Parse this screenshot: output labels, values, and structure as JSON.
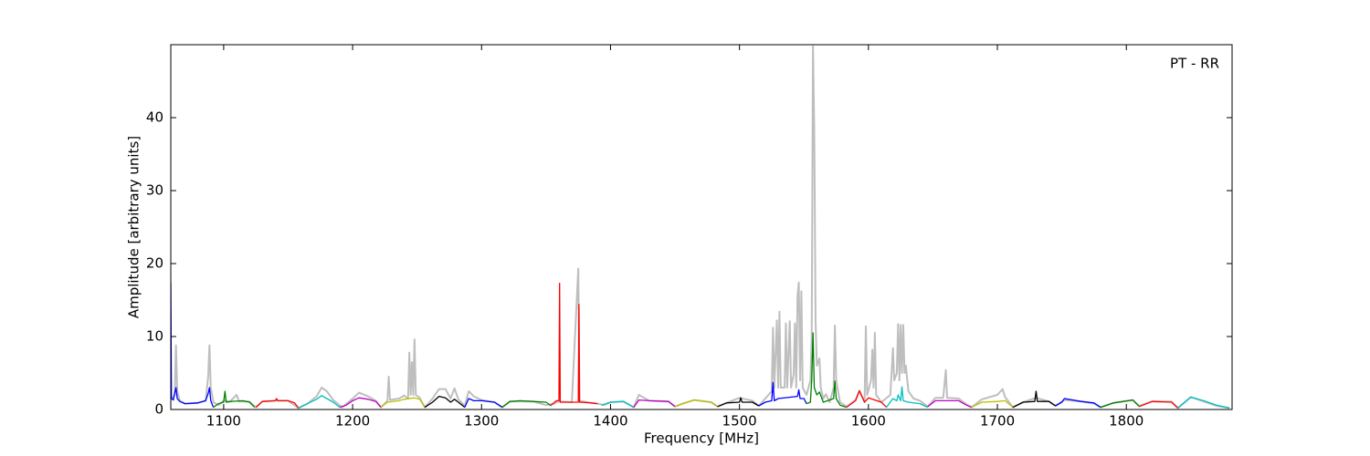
{
  "chart_data": {
    "type": "line",
    "annotation": "PT - RR",
    "x_label": "Frequency [MHz]",
    "y_label": "Amplitude [arbitrary units]",
    "xlim": [
      1059,
      1882
    ],
    "ylim": [
      0,
      50
    ],
    "xticks": [
      1100,
      1200,
      1300,
      1400,
      1500,
      1600,
      1700,
      1800
    ],
    "yticks": [
      0,
      10,
      20,
      30,
      40
    ],
    "series": [
      {
        "color": "#bebebe",
        "x": [
          1060,
          1062,
          1063,
          1064,
          1066,
          1070,
          1080,
          1086,
          1088,
          1089,
          1090,
          1092,
          1096,
          1100,
          1105,
          1110,
          1112,
          1120,
          1125,
          1130,
          1140,
          1150,
          1158,
          1165,
          1172,
          1176,
          1180,
          1185,
          1192,
          1200,
          1205,
          1212,
          1218,
          1222,
          1227,
          1228,
          1229,
          1236,
          1240,
          1243,
          1244,
          1245,
          1246,
          1247,
          1248,
          1249,
          1252,
          1256,
          1262,
          1267,
          1272,
          1276,
          1279,
          1282,
          1287,
          1290,
          1294,
          1300,
          1310,
          1316,
          1322,
          1340,
          1350,
          1356,
          1360,
          1370,
          1375,
          1376,
          1385,
          1390,
          1395,
          1400,
          1410,
          1418,
          1422,
          1430,
          1445,
          1450,
          1456,
          1465,
          1478,
          1483,
          1490,
          1500,
          1510,
          1515,
          1520,
          1525,
          1526,
          1527,
          1529,
          1530,
          1531,
          1532,
          1535,
          1536,
          1537,
          1539,
          1540,
          1542,
          1543,
          1544,
          1545,
          1546,
          1547,
          1548,
          1549,
          1552,
          1555,
          1556,
          1557,
          1558,
          1559,
          1560,
          1562,
          1563,
          1565,
          1567,
          1570,
          1573,
          1574,
          1575,
          1578,
          1583,
          1590,
          1593,
          1597,
          1598,
          1599,
          1602,
          1603,
          1604,
          1605,
          1606,
          1610,
          1617,
          1619,
          1620,
          1622,
          1623,
          1624,
          1625,
          1626,
          1627,
          1628,
          1629,
          1631,
          1635,
          1640,
          1646,
          1652,
          1658,
          1660,
          1661,
          1670,
          1676,
          1680,
          1688,
          1700,
          1704,
          1706,
          1712,
          1720,
          1730,
          1740,
          1745,
          1752,
          1765,
          1775,
          1780,
          1790,
          1805,
          1810,
          1820,
          1835,
          1840,
          1850,
          1860,
          1870,
          1880
        ],
        "values": [
          1.5,
          2,
          8.8,
          2.5,
          1.2,
          0.8,
          0.9,
          1.2,
          4.5,
          8.8,
          3,
          1,
          0.6,
          1.2,
          1.1,
          2,
          1.1,
          1.1,
          0.3,
          1.1,
          1.2,
          1.2,
          0.2,
          0.8,
          1.8,
          3,
          2.5,
          1.3,
          0.3,
          1.5,
          2.3,
          1.8,
          1.2,
          0.3,
          1.2,
          4.5,
          1.3,
          1.5,
          1.9,
          1.5,
          7.8,
          2,
          6.5,
          2,
          9.6,
          2,
          1.6,
          0.3,
          1.5,
          2.8,
          2.8,
          1.5,
          2.9,
          1.4,
          0.5,
          2.5,
          1.8,
          1.3,
          1,
          0.3,
          1.1,
          1.1,
          0.6,
          0.8,
          1.1,
          1,
          19.3,
          1.2,
          0.9,
          0.8,
          0.6,
          1,
          1.1,
          0.3,
          2,
          1.2,
          1.1,
          0.4,
          0.8,
          1.3,
          1,
          0.4,
          0.9,
          1.6,
          1.2,
          0.5,
          1.5,
          2.5,
          11.2,
          3,
          12.2,
          3,
          13.4,
          3,
          3,
          11.8,
          3,
          12.1,
          3,
          4.8,
          11.8,
          3,
          15.5,
          17.4,
          4,
          16.2,
          3,
          2,
          4,
          10,
          49.8,
          38,
          12,
          6,
          7,
          3,
          1.5,
          2.1,
          1,
          3,
          11.5,
          4,
          1,
          0.4,
          1.3,
          2.5,
          1,
          11.4,
          2,
          4,
          8.2,
          3,
          10.5,
          2,
          1,
          2,
          8.4,
          4,
          5,
          11.7,
          4,
          11.6,
          5,
          11.6,
          5,
          6,
          2.5,
          1.5,
          1.2,
          0.4,
          1.6,
          1.6,
          5.4,
          1.6,
          1.5,
          0.7,
          0.3,
          1.4,
          2,
          2.8,
          1.7,
          0.3,
          1,
          1.6,
          1.1,
          0.5,
          1.3,
          1.1,
          0.8,
          0.3,
          0.9,
          1.3,
          0.5,
          1.1,
          1.1,
          0.2,
          1.7,
          1.1,
          0.5,
          0.2
        ]
      },
      {
        "color": "#0000ff",
        "x": [
          1059,
          1059.5,
          1061,
          1062,
          1063,
          1064,
          1066,
          1070,
          1080,
          1086,
          1088,
          1089,
          1090,
          1092
        ],
        "values": [
          17.4,
          1.5,
          1.3,
          2.2,
          3,
          1.5,
          1.1,
          0.8,
          0.9,
          1.2,
          2.2,
          3,
          1.2,
          0.3
        ]
      },
      {
        "color": "#008000",
        "x": [
          1092,
          1096,
          1100,
          1101,
          1102,
          1106,
          1115,
          1120,
          1124
        ],
        "values": [
          0.3,
          0.8,
          1,
          2.5,
          1,
          1.1,
          1.2,
          1,
          0.3
        ]
      },
      {
        "color": "#ff0000",
        "x": [
          1125,
          1130,
          1140,
          1141,
          1142,
          1150,
          1155,
          1158
        ],
        "values": [
          0.3,
          1.1,
          1.2,
          1.5,
          1.2,
          1.2,
          0.9,
          0.2
        ]
      },
      {
        "color": "#00bfbf",
        "x": [
          1158,
          1165,
          1172,
          1176,
          1180,
          1185,
          1190
        ],
        "values": [
          0.2,
          0.8,
          1.4,
          1.9,
          1.5,
          1,
          0.3
        ]
      },
      {
        "color": "#bf00bf",
        "x": [
          1190,
          1195,
          1200,
          1205,
          1212,
          1218,
          1222
        ],
        "values": [
          0.3,
          0.6,
          1.2,
          1.6,
          1.4,
          1.1,
          0.3
        ]
      },
      {
        "color": "#bfbf00",
        "x": [
          1222,
          1227,
          1236,
          1240,
          1248,
          1252,
          1256
        ],
        "values": [
          0.3,
          1,
          1.2,
          1.4,
          1.6,
          1.4,
          0.3
        ]
      },
      {
        "color": "#000000",
        "x": [
          1256,
          1262,
          1267,
          1272,
          1276,
          1279,
          1282,
          1287
        ],
        "values": [
          0.3,
          1,
          1.8,
          1.6,
          1,
          1.4,
          1,
          0.3
        ]
      },
      {
        "color": "#0000ff",
        "x": [
          1287,
          1290,
          1294,
          1300,
          1310,
          1316
        ],
        "values": [
          0.3,
          1.5,
          1.2,
          1.2,
          1,
          0.3
        ]
      },
      {
        "color": "#008000",
        "x": [
          1316,
          1322,
          1330,
          1340,
          1350,
          1354
        ],
        "values": [
          0.3,
          1.1,
          1.2,
          1.1,
          1,
          0.5
        ]
      },
      {
        "color": "#ff0000",
        "x": [
          1354,
          1358,
          1360,
          1360.5,
          1361,
          1370,
          1375,
          1375.5,
          1376,
          1385,
          1390
        ],
        "values": [
          0.6,
          1.2,
          1.2,
          17.3,
          1,
          1,
          1,
          14.4,
          1,
          0.9,
          0.8
        ]
      },
      {
        "color": "#00bfbf",
        "x": [
          1393,
          1400,
          1410,
          1418
        ],
        "values": [
          0.6,
          1,
          1.1,
          0.3
        ]
      },
      {
        "color": "#bf00bf",
        "x": [
          1418,
          1422,
          1430,
          1445,
          1450
        ],
        "values": [
          0.3,
          1.3,
          1.2,
          1.1,
          0.4
        ]
      },
      {
        "color": "#bfbf00",
        "x": [
          1450,
          1456,
          1465,
          1478,
          1483
        ],
        "values": [
          0.4,
          0.8,
          1.3,
          1,
          0.4
        ]
      },
      {
        "color": "#000000",
        "x": [
          1483,
          1490,
          1500,
          1501,
          1502,
          1510,
          1515
        ],
        "values": [
          0.4,
          0.9,
          1,
          1.6,
          1,
          1,
          0.5
        ]
      },
      {
        "color": "#0000ff",
        "x": [
          1515,
          1520,
          1525,
          1526,
          1527,
          1530,
          1545,
          1546,
          1547,
          1550,
          1552
        ],
        "values": [
          0.5,
          1,
          1.2,
          3.7,
          1.2,
          1.5,
          1.8,
          2.7,
          1.5,
          1.5,
          0.8
        ]
      },
      {
        "color": "#008000",
        "x": [
          1552,
          1555,
          1556,
          1557,
          1558,
          1560,
          1562,
          1565,
          1573,
          1574,
          1575,
          1578,
          1583
        ],
        "values": [
          0.8,
          1,
          4,
          10.5,
          3,
          2,
          2.4,
          1,
          1.5,
          3.9,
          1.5,
          0.6,
          0.3
        ]
      },
      {
        "color": "#ff0000",
        "x": [
          1583,
          1590,
          1593,
          1597,
          1600,
          1605,
          1610,
          1614
        ],
        "values": [
          0.3,
          1.2,
          2.6,
          1,
          1.6,
          1.3,
          1,
          0.3
        ]
      },
      {
        "color": "#00bfbf",
        "x": [
          1614,
          1619,
          1622,
          1623,
          1625,
          1626,
          1627,
          1631,
          1640,
          1646
        ],
        "values": [
          0.3,
          1.5,
          1.2,
          2,
          1.2,
          3.1,
          1.2,
          1,
          0.8,
          0.3
        ]
      },
      {
        "color": "#bf00bf",
        "x": [
          1646,
          1652,
          1660,
          1670,
          1676,
          1680
        ],
        "values": [
          0.4,
          1.2,
          1.2,
          1.2,
          0.6,
          0.3
        ]
      },
      {
        "color": "#bfbf00",
        "x": [
          1680,
          1688,
          1700,
          1706,
          1712
        ],
        "values": [
          0.3,
          1,
          1.1,
          1.2,
          0.3
        ]
      },
      {
        "color": "#000000",
        "x": [
          1712,
          1720,
          1729,
          1730,
          1731,
          1740,
          1745
        ],
        "values": [
          0.3,
          1,
          1.1,
          2.5,
          1.1,
          1.1,
          0.5
        ]
      },
      {
        "color": "#0000ff",
        "x": [
          1745,
          1750,
          1752,
          1765,
          1775,
          1780
        ],
        "values": [
          0.5,
          1,
          1.5,
          1.1,
          0.9,
          0.3
        ]
      },
      {
        "color": "#008000",
        "x": [
          1780,
          1790,
          1805,
          1810
        ],
        "values": [
          0.3,
          0.9,
          1.3,
          0.4
        ]
      },
      {
        "color": "#ff0000",
        "x": [
          1810,
          1820,
          1835,
          1840
        ],
        "values": [
          0.4,
          1.1,
          1,
          0.2
        ]
      },
      {
        "color": "#00bfbf",
        "x": [
          1840,
          1850,
          1860,
          1870,
          1880
        ],
        "values": [
          0.2,
          1.7,
          1.2,
          0.6,
          0.2
        ]
      }
    ]
  }
}
